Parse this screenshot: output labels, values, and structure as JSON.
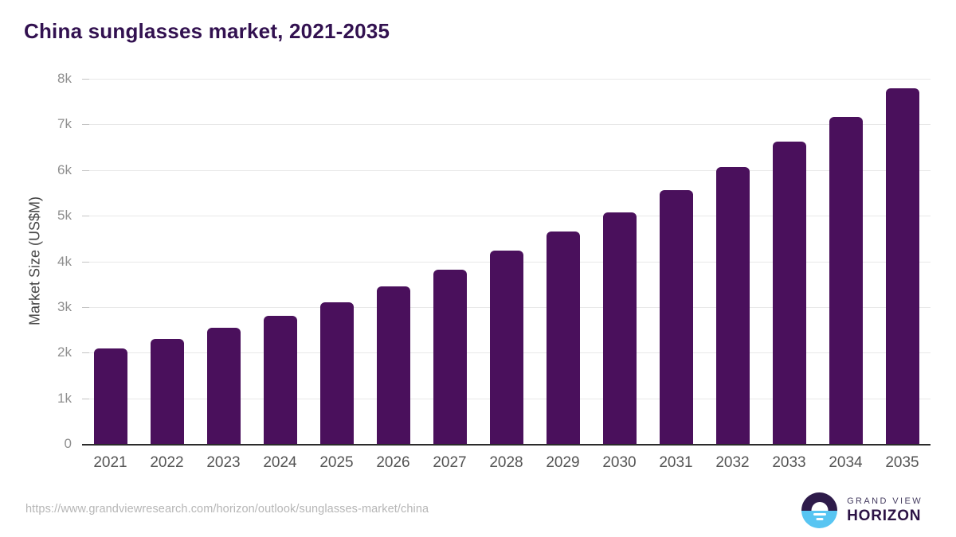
{
  "title": "China sunglasses market, 2021-2035",
  "chart_data": {
    "type": "bar",
    "title": "China sunglasses market, 2021-2035",
    "categories": [
      "2021",
      "2022",
      "2023",
      "2024",
      "2025",
      "2026",
      "2027",
      "2028",
      "2029",
      "2030",
      "2031",
      "2032",
      "2033",
      "2034",
      "2035"
    ],
    "values": [
      2100,
      2300,
      2540,
      2810,
      3100,
      3450,
      3810,
      4240,
      4650,
      5080,
      5560,
      6070,
      6620,
      7170,
      7790
    ],
    "xlabel": "",
    "ylabel": "Market Size (US$M)",
    "ylim": [
      0,
      8000
    ],
    "yticks": [
      {
        "value": 0,
        "label": "0"
      },
      {
        "value": 1000,
        "label": "1k"
      },
      {
        "value": 2000,
        "label": "2k"
      },
      {
        "value": 3000,
        "label": "3k"
      },
      {
        "value": 4000,
        "label": "4k"
      },
      {
        "value": 5000,
        "label": "5k"
      },
      {
        "value": 6000,
        "label": "6k"
      },
      {
        "value": 7000,
        "label": "7k"
      },
      {
        "value": 8000,
        "label": "8k"
      }
    ],
    "grid": "horizontal-only",
    "legend": "none",
    "bar_color": "#4a105c"
  },
  "colors": {
    "title": "#321150",
    "bar": "#4a105c",
    "axis_line": "#2b2b2b",
    "gridline": "#e8e8e8",
    "y_tick_label": "#8f8f8f",
    "x_tick_label": "#545454",
    "source_url": "#b6b6b6",
    "logo_dark": "#2e1b4a",
    "logo_blue": "#58c5f2"
  },
  "footer": {
    "source_url": "https://www.grandviewresearch.com/horizon/outlook/sunglasses-market/china",
    "logo": {
      "line1": "GRAND VIEW",
      "line2": "HORIZON"
    }
  }
}
